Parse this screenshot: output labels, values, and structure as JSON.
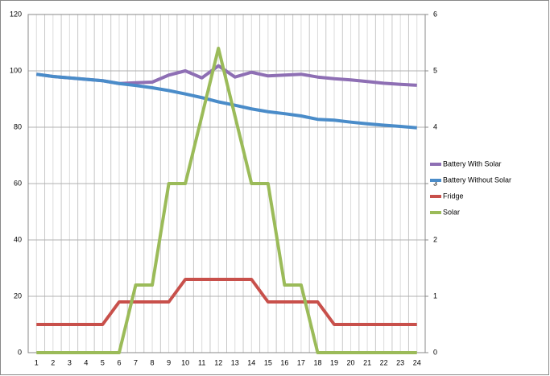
{
  "chart_data": {
    "type": "line",
    "categories": [
      "1",
      "2",
      "3",
      "4",
      "5",
      "6",
      "7",
      "8",
      "9",
      "10",
      "11",
      "12",
      "13",
      "14",
      "15",
      "16",
      "17",
      "18",
      "19",
      "20",
      "21",
      "22",
      "23",
      "24"
    ],
    "ylim": [
      0,
      120
    ],
    "yticks": [
      0,
      20,
      40,
      60,
      80,
      100,
      120
    ],
    "y2lim": [
      0,
      6
    ],
    "y2ticks": [
      0,
      1,
      2,
      3,
      4,
      5,
      6
    ],
    "grid": true,
    "legend": "right",
    "series": [
      {
        "name": "Battery With Solar",
        "color": "#8e6fb4",
        "values": [
          98.8,
          98,
          97.5,
          97,
          96.5,
          95.5,
          95.8,
          96,
          98.5,
          100,
          97.5,
          101.8,
          97.8,
          99.5,
          98.2,
          98.5,
          98.8,
          97.8,
          97.2,
          96.8,
          96.2,
          95.6,
          95.2,
          94.9
        ]
      },
      {
        "name": "Battery Without Solar",
        "color": "#4a8cc9",
        "values": [
          98.8,
          98,
          97.5,
          97,
          96.5,
          95.5,
          94.8,
          94,
          93,
          91.8,
          90.5,
          89,
          87.8,
          86.5,
          85.5,
          84.8,
          84,
          82.8,
          82.5,
          81.8,
          81.2,
          80.7,
          80.3,
          79.8
        ]
      },
      {
        "name": "Fridge",
        "color": "#c8504b",
        "axis": "y2",
        "values": [
          0.5,
          0.5,
          0.5,
          0.5,
          0.5,
          0.9,
          0.9,
          0.9,
          0.9,
          1.3,
          1.3,
          1.3,
          1.3,
          1.3,
          0.9,
          0.9,
          0.9,
          0.9,
          0.5,
          0.5,
          0.5,
          0.5,
          0.5,
          0.5
        ]
      },
      {
        "name": "Solar",
        "color": "#9bbb59",
        "axis": "y2",
        "values": [
          0,
          0,
          0,
          0,
          0,
          0,
          1.2,
          1.2,
          3,
          3,
          4.2,
          5.4,
          4.2,
          3,
          3,
          1.2,
          1.2,
          0,
          0,
          0,
          0,
          0,
          0,
          0
        ]
      }
    ]
  }
}
